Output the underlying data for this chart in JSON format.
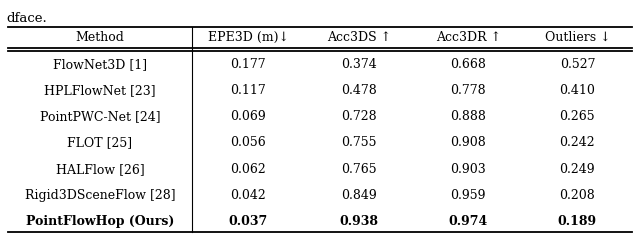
{
  "caption": "dface.",
  "columns": [
    "Method",
    "EPE3D (m)↓",
    "Acc3DS ↑",
    "Acc3DR ↑",
    "Outliers ↓"
  ],
  "rows": [
    [
      "FlowNet3D [1]",
      "0.177",
      "0.374",
      "0.668",
      "0.527"
    ],
    [
      "HPLFlowNet [23]",
      "0.117",
      "0.478",
      "0.778",
      "0.410"
    ],
    [
      "PointPWC-Net [24]",
      "0.069",
      "0.728",
      "0.888",
      "0.265"
    ],
    [
      "FLOT [25]",
      "0.056",
      "0.755",
      "0.908",
      "0.242"
    ],
    [
      "HALFlow [26]",
      "0.062",
      "0.765",
      "0.903",
      "0.249"
    ],
    [
      "Rigid3DSceneFlow [28]",
      "0.042",
      "0.849",
      "0.959",
      "0.208"
    ],
    [
      "PointFlowHop (Ours)",
      "0.037",
      "0.938",
      "0.974",
      "0.189"
    ]
  ],
  "last_row_bold": true,
  "text_color": "#000000",
  "font_size": 9.0,
  "caption_font_size": 9.5,
  "fig_width": 6.4,
  "fig_height": 2.4,
  "dpi": 100
}
